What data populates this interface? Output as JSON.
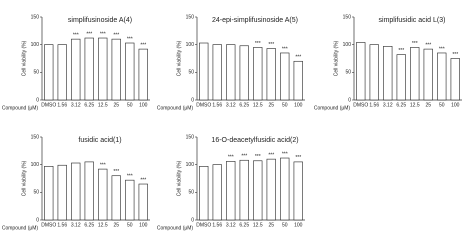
{
  "chart_data": [
    {
      "type": "bar",
      "title": "simplifusinoside A(4)",
      "ylabel": "Cell viability (%)",
      "xlabel": "Compound (μM)",
      "color": "#ffffff",
      "categories": [
        "DMSO",
        "1.56",
        "3.12",
        "6.25",
        "12.5",
        "25",
        "50",
        "100"
      ],
      "values": [
        100,
        100,
        110,
        112,
        112,
        110,
        103,
        92
      ],
      "annotations": [
        null,
        null,
        "***",
        "***",
        "***",
        "***",
        "***",
        "***"
      ],
      "ylim": [
        0,
        150
      ],
      "yticks": [
        0,
        50,
        100,
        150
      ]
    },
    {
      "type": "bar",
      "title": "24-epi-simplifusinoside A(5)",
      "ylabel": "Cell viability (%)",
      "xlabel": "Compound (μM)",
      "color": "#ffffff",
      "categories": [
        "DMSO",
        "1.56",
        "3.12",
        "6.25",
        "12.5",
        "25",
        "50",
        "100"
      ],
      "values": [
        103,
        100,
        100,
        98,
        95,
        93,
        85,
        70
      ],
      "annotations": [
        null,
        null,
        null,
        null,
        "***",
        "***",
        "***",
        "***"
      ],
      "ylim": [
        0,
        150
      ],
      "yticks": [
        0,
        50,
        100,
        150
      ]
    },
    {
      "type": "bar",
      "title": "simplifusidic acid L(3)",
      "ylabel": "Cell viability (%)",
      "xlabel": "Compound (μM)",
      "color": "#ffffff",
      "categories": [
        "DMSO",
        "1.56",
        "3.12",
        "6.25",
        "12.5",
        "25",
        "50",
        "100"
      ],
      "values": [
        104,
        100,
        97,
        82,
        95,
        92,
        85,
        75
      ],
      "annotations": [
        null,
        null,
        null,
        "***",
        "***",
        "***",
        "***",
        "***"
      ],
      "ylim": [
        0,
        150
      ],
      "yticks": [
        0,
        50,
        100,
        150
      ]
    },
    {
      "type": "bar",
      "title": "fusidic acid(1)",
      "ylabel": "Cell viability (%)",
      "xlabel": "Compound (μM)",
      "color": "#ffffff",
      "categories": [
        "DMSO",
        "1.56",
        "3.12",
        "6.25",
        "12.5",
        "25",
        "50",
        "100"
      ],
      "values": [
        97,
        99,
        103,
        105,
        92,
        80,
        72,
        65
      ],
      "annotations": [
        null,
        null,
        null,
        null,
        "***",
        "***",
        "***",
        "***"
      ],
      "ylim": [
        0,
        150
      ],
      "yticks": [
        0,
        50,
        100,
        150
      ]
    },
    {
      "type": "bar",
      "title": "16-O-deacetylfusidic acid(2)",
      "ylabel": "Cell viability (%)",
      "xlabel": "Compound (μM)",
      "color": "#ffffff",
      "categories": [
        "DMSO",
        "1.56",
        "3.12",
        "6.25",
        "12.5",
        "25",
        "50",
        "100"
      ],
      "values": [
        97,
        100,
        106,
        108,
        107,
        110,
        112,
        105
      ],
      "annotations": [
        null,
        null,
        "***",
        "***",
        "***",
        "***",
        "***",
        "***"
      ],
      "ylim": [
        0,
        150
      ],
      "yticks": [
        0,
        50,
        100,
        150
      ]
    }
  ]
}
